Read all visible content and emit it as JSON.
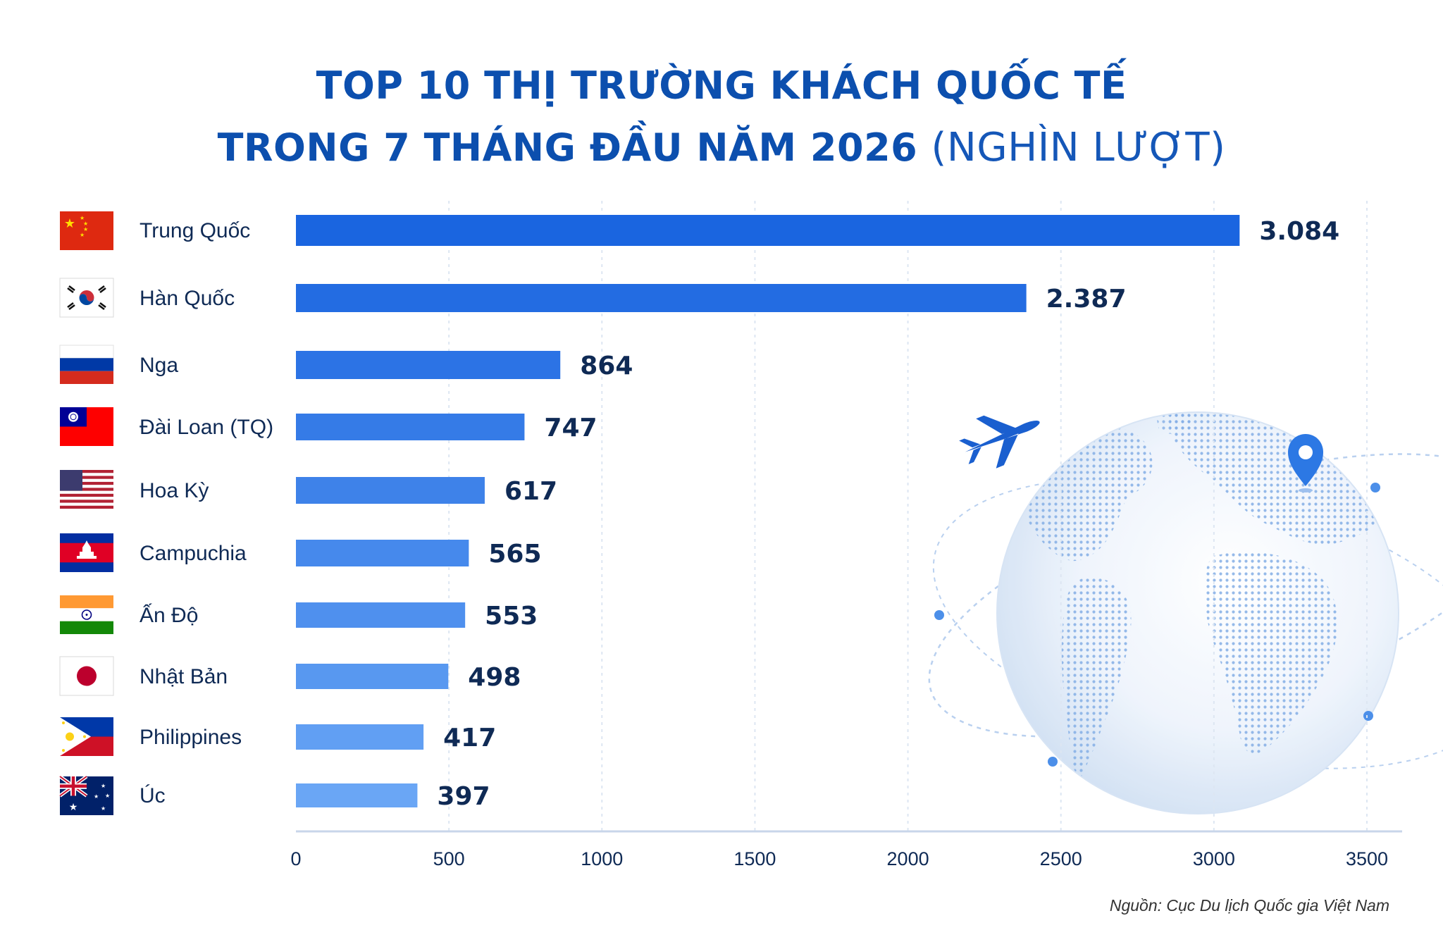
{
  "title": {
    "line1": "TOP 10 THỊ TRƯỜNG KHÁCH QUỐC TẾ",
    "line2": "TRONG 7 THÁNG ĐẦU NĂM 2026",
    "unit": "(NGHÌN LƯỢT)"
  },
  "source": "Nguồn: Cục Du lịch Quốc gia Việt Nam",
  "colors": {
    "title": "#0c4fae",
    "bar_dark": "#1a65e0",
    "bar_light": "#6aa6f5",
    "label_value": "#0f2a55",
    "axis": "#c8d6ea",
    "gridline": "#dde6f2"
  },
  "chart_data": {
    "type": "bar",
    "orientation": "horizontal",
    "categories": [
      "Trung Quốc",
      "Hàn Quốc",
      "Nga",
      "Đài Loan (TQ)",
      "Hoa Kỳ",
      "Campuchia",
      "Ấn Độ",
      "Nhật Bản",
      "Philippines",
      "Úc"
    ],
    "values": [
      3084,
      2387,
      864,
      747,
      617,
      565,
      553,
      498,
      417,
      397
    ],
    "value_labels": [
      "3.084",
      "2.387",
      "864",
      "747",
      "617",
      "565",
      "553",
      "498",
      "417",
      "397"
    ],
    "flags": [
      "china-flag",
      "south-korea-flag",
      "russia-flag",
      "taiwan-flag",
      "usa-flag",
      "cambodia-flag",
      "india-flag",
      "japan-flag",
      "philippines-flag",
      "australia-flag"
    ],
    "xlim": [
      0,
      3500
    ],
    "xticks": [
      0,
      500,
      1000,
      1500,
      2000,
      2500,
      3000,
      3500
    ],
    "xtick_labels": [
      "0",
      "500",
      "1000",
      "1500",
      "2000",
      "2500",
      "3000",
      "3500"
    ],
    "grid": true,
    "xlabel": "",
    "ylabel": ""
  },
  "decoration": {
    "globe": "globe-illustration",
    "plane": "airplane-icon",
    "pin": "location-pin-icon"
  }
}
